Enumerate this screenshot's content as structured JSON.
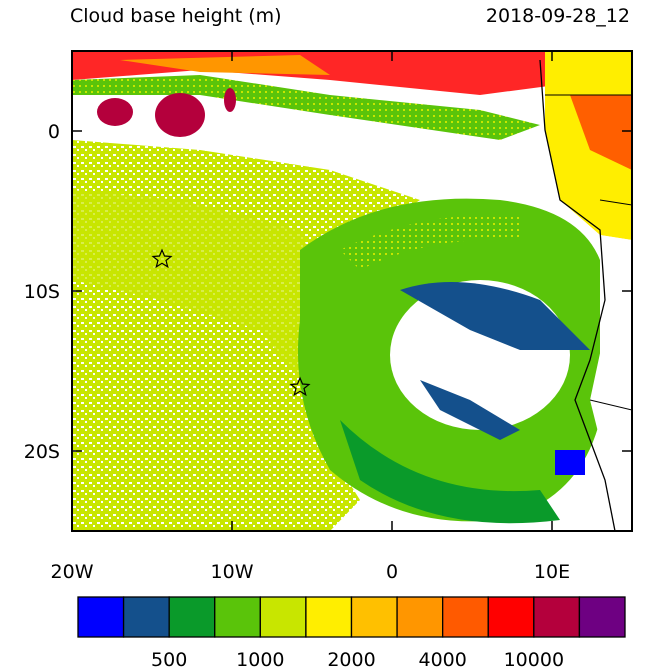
{
  "title": "Cloud base height (m)",
  "time": "2018-09-28_12",
  "map": {
    "lon_range": [
      -20,
      15
    ],
    "lat_range": [
      -25,
      5
    ],
    "lon_ticks": [
      {
        "value": -20,
        "label": "20W"
      },
      {
        "value": -10,
        "label": "10W"
      },
      0,
      {
        "value": 10,
        "label": "10E"
      }
    ],
    "lat_ticks": [
      0,
      {
        "value": -10,
        "label": "10S"
      },
      {
        "value": -20,
        "label": "20S"
      }
    ]
  },
  "colorbar": {
    "colors": [
      "#0000ff",
      "#14508c",
      "#0a9a2a",
      "#5ac40a",
      "#c8e600",
      "#ffee00",
      "#ffc000",
      "#ff9600",
      "#ff5a00",
      "#ff0000",
      "#b4003c",
      "#6e0082"
    ],
    "labels": [
      500,
      1000,
      2000,
      4000,
      10000
    ]
  }
}
